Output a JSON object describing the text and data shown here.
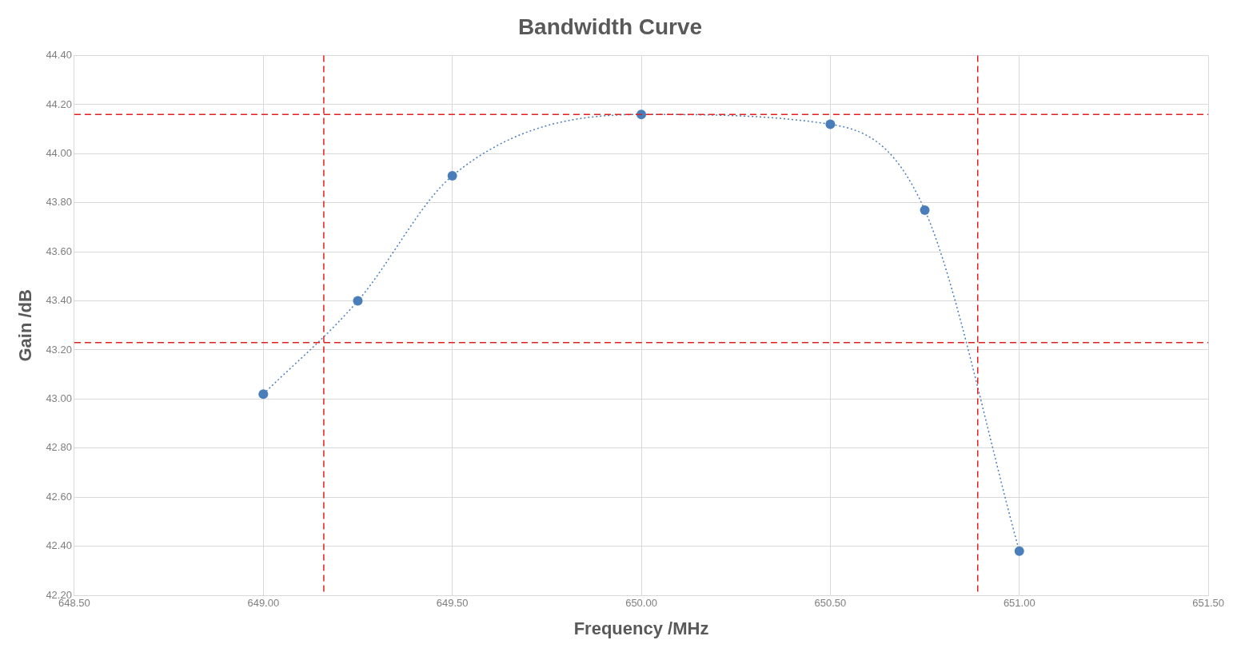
{
  "chart_data": {
    "type": "line",
    "title": "Bandwidth Curve",
    "xlabel": "Frequency /MHz",
    "ylabel": "Gain /dB",
    "x": [
      649.0,
      649.25,
      649.5,
      650.0,
      650.5,
      650.75,
      651.0
    ],
    "series": [
      {
        "color": "#4a7ebb",
        "values": [
          43.02,
          43.4,
          43.91,
          44.16,
          44.12,
          43.77,
          42.38
        ]
      }
    ],
    "marker": "circle",
    "line_style": "dotted",
    "grid": true,
    "legend": false,
    "xlim": [
      648.5,
      651.5
    ],
    "xticks": [
      {
        "value": 648.5,
        "label": "648.50"
      },
      {
        "value": 649,
        "label": "649.00"
      },
      {
        "value": 649.5,
        "label": "649.50"
      },
      {
        "value": 650,
        "label": "650.00"
      },
      {
        "value": 650.5,
        "label": "650.50"
      },
      {
        "value": 651,
        "label": "651.00"
      },
      {
        "value": 651.5,
        "label": "651.50"
      }
    ],
    "ylim": [
      42.2,
      44.4
    ],
    "yticks": [
      {
        "value": 42.2,
        "label": "42.20"
      },
      {
        "value": 42.4,
        "label": "42.40"
      },
      {
        "value": 42.6,
        "label": "42.60"
      },
      {
        "value": 42.8,
        "label": "42.80"
      },
      {
        "value": 43.0,
        "label": "43.00"
      },
      {
        "value": 43.2,
        "label": "43.20"
      },
      {
        "value": 43.4,
        "label": "43.40"
      },
      {
        "value": 43.6,
        "label": "43.60"
      },
      {
        "value": 43.8,
        "label": "43.80"
      },
      {
        "value": 44.0,
        "label": "44.00"
      },
      {
        "value": 44.2,
        "label": "44.20"
      },
      {
        "value": 44.4,
        "label": "44.40"
      }
    ],
    "ref_lines": [
      {
        "axis": "y",
        "value": 44.16,
        "color": "#e02020",
        "line_style": "dashed"
      },
      {
        "axis": "y",
        "value": 43.23,
        "color": "#e02020",
        "line_style": "dashed"
      },
      {
        "axis": "x",
        "value": 649.16,
        "color": "#e02020",
        "line_style": "dashed"
      },
      {
        "axis": "x",
        "value": 650.89,
        "color": "#e02020",
        "line_style": "dashed"
      }
    ]
  }
}
